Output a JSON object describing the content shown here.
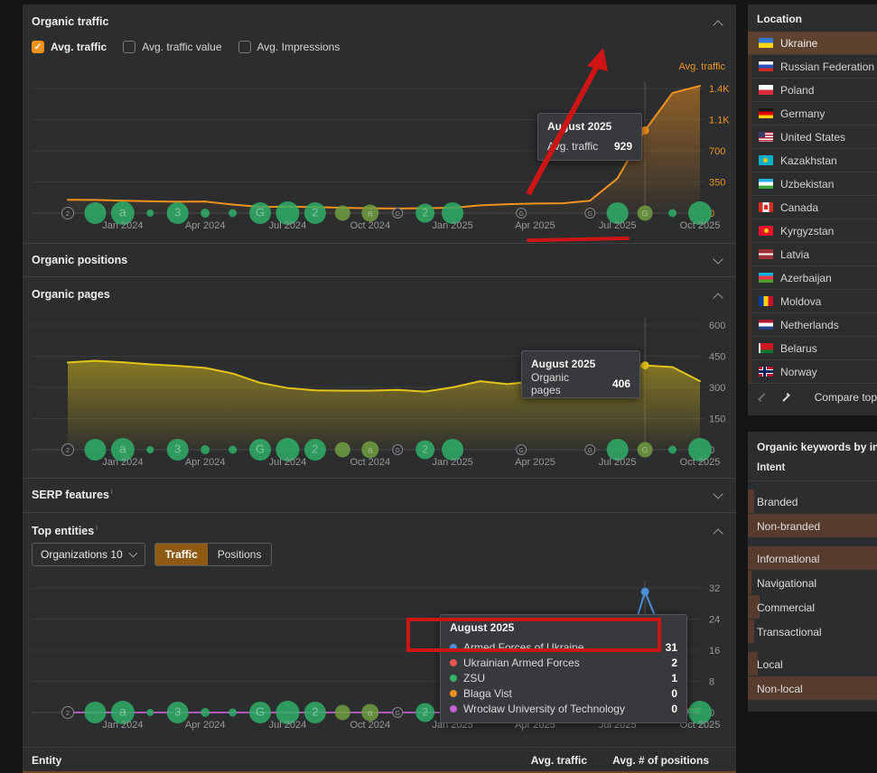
{
  "panels": {
    "organic_traffic": {
      "title": "Organic traffic",
      "checkboxes": [
        {
          "label": "Avg. traffic",
          "checked": true
        },
        {
          "label": "Avg. traffic value",
          "checked": false
        },
        {
          "label": "Avg. Impressions",
          "checked": false
        }
      ],
      "axis_right_title": "Avg. traffic",
      "tooltip": {
        "title": "August 2025",
        "label": "Avg. traffic",
        "value": "929"
      }
    },
    "organic_positions": {
      "title": "Organic positions"
    },
    "organic_pages": {
      "title": "Organic pages",
      "tooltip": {
        "title": "August 2025",
        "label": "Organic pages",
        "value": "406"
      }
    },
    "serp_features": {
      "title": "SERP features",
      "info": "i"
    },
    "top_entities": {
      "title": "Top entities",
      "info": "i",
      "filter_label": "Organizations 10",
      "tabs": [
        "Traffic",
        "Positions"
      ],
      "active_tab": "Traffic",
      "tooltip": {
        "title": "August 2025",
        "rows": [
          {
            "color": "#4a90d9",
            "label": "Armed Forces of Ukraine",
            "value": "31"
          },
          {
            "color": "#e8554e",
            "label": "Ukrainian Armed Forces",
            "value": "2"
          },
          {
            "color": "#36b36b",
            "label": "ZSU",
            "value": "1"
          },
          {
            "color": "#f09023",
            "label": "Blaga Vist",
            "value": "0"
          },
          {
            "color": "#c45fd0",
            "label": "Wrocław University of Technology",
            "value": "0"
          }
        ]
      }
    },
    "entity_table": {
      "columns": [
        "Entity",
        "Avg. traffic",
        "Avg. # of positions"
      ]
    }
  },
  "sidebar": {
    "location": {
      "title": "Location",
      "items": [
        {
          "label": "Ukraine",
          "flag": "ua",
          "selected": true
        },
        {
          "label": "Russian Federation",
          "flag": "ru",
          "selected": false
        },
        {
          "label": "Poland",
          "flag": "pl",
          "selected": false
        },
        {
          "label": "Germany",
          "flag": "de",
          "selected": false
        },
        {
          "label": "United States",
          "flag": "us",
          "selected": false
        },
        {
          "label": "Kazakhstan",
          "flag": "kz",
          "selected": false
        },
        {
          "label": "Uzbekistan",
          "flag": "uz",
          "selected": false
        },
        {
          "label": "Canada",
          "flag": "ca",
          "selected": false
        },
        {
          "label": "Kyrgyzstan",
          "flag": "kg",
          "selected": false
        },
        {
          "label": "Latvia",
          "flag": "lv",
          "selected": false
        },
        {
          "label": "Azerbaijan",
          "flag": "az",
          "selected": false
        },
        {
          "label": "Moldova",
          "flag": "md",
          "selected": false
        },
        {
          "label": "Netherlands",
          "flag": "nl",
          "selected": false
        },
        {
          "label": "Belarus",
          "flag": "by",
          "selected": false
        },
        {
          "label": "Norway",
          "flag": "no",
          "selected": false
        }
      ],
      "compare_label": "Compare top"
    },
    "intent": {
      "title": "Organic keywords by intent",
      "subtitle": "Intent",
      "groups": [
        [
          {
            "label": "Branded",
            "bar_pct": 5
          },
          {
            "label": "Non-branded",
            "bar_pct": 100
          }
        ],
        [
          {
            "label": "Informational",
            "bar_pct": 100
          },
          {
            "label": "Navigational",
            "bar_pct": 3
          },
          {
            "label": "Commercial",
            "bar_pct": 9
          },
          {
            "label": "Transactional",
            "bar_pct": 5
          }
        ],
        [
          {
            "label": "Local",
            "bar_pct": 8
          },
          {
            "label": "Non-local",
            "bar_pct": 100
          }
        ]
      ]
    }
  },
  "shared_markers": [
    {
      "m": 0,
      "s": 13,
      "t": "2",
      "k": "outline"
    },
    {
      "m": 1,
      "s": 24,
      "t": "",
      "k": "solid"
    },
    {
      "m": 2,
      "s": 26,
      "t": "a",
      "k": "solid"
    },
    {
      "m": 3,
      "s": 8,
      "t": "",
      "k": "solid"
    },
    {
      "m": 4,
      "s": 24,
      "t": "3",
      "k": "solid"
    },
    {
      "m": 5,
      "s": 10,
      "t": "",
      "k": "solid"
    },
    {
      "m": 6,
      "s": 9,
      "t": "",
      "k": "solid"
    },
    {
      "m": 7,
      "s": 24,
      "t": "G",
      "k": "solid"
    },
    {
      "m": 8,
      "s": 26,
      "t": "",
      "k": "solid"
    },
    {
      "m": 9,
      "s": 24,
      "t": "2",
      "k": "solid"
    },
    {
      "m": 10,
      "s": 17,
      "t": "",
      "k": "olive"
    },
    {
      "m": 11,
      "s": 19,
      "t": "a",
      "k": "olive"
    },
    {
      "m": 12,
      "s": 11,
      "t": "G",
      "k": "outline"
    },
    {
      "m": 13,
      "s": 21,
      "t": "2",
      "k": "solid"
    },
    {
      "m": 14,
      "s": 24,
      "t": "",
      "k": "solid"
    },
    {
      "m": 16.5,
      "s": 11,
      "t": "G",
      "k": "outline"
    },
    {
      "m": 19,
      "s": 11,
      "t": "G",
      "k": "outline"
    },
    {
      "m": 20,
      "s": 24,
      "t": "",
      "k": "solid"
    },
    {
      "m": 21,
      "s": 17,
      "t": "G",
      "k": "olive"
    },
    {
      "m": 22,
      "s": 9,
      "t": "",
      "k": "solid"
    },
    {
      "m": 23,
      "s": 26,
      "t": "",
      "k": "solid"
    }
  ],
  "chart_data": [
    {
      "type": "line",
      "title": "Organic traffic (Avg. traffic)",
      "x": [
        "Nov 2023",
        "Dec 2023",
        "Jan 2024",
        "Feb 2024",
        "Mar 2024",
        "Apr 2024",
        "May 2024",
        "Jun 2024",
        "Jul 2024",
        "Aug 2024",
        "Sep 2024",
        "Oct 2024",
        "Nov 2024",
        "Dec 2024",
        "Jan 2025",
        "Feb 2025",
        "Mar 2025",
        "Apr 2025",
        "May 2025",
        "Jun 2025",
        "Jul 2025",
        "Aug 2025",
        "Sep 2025",
        "Oct 2025"
      ],
      "xticks": [
        {
          "i": 2,
          "label": "Jan 2024"
        },
        {
          "i": 5,
          "label": "Apr 2024"
        },
        {
          "i": 8,
          "label": "Jul 2024"
        },
        {
          "i": 11,
          "label": "Oct 2024"
        },
        {
          "i": 14,
          "label": "Jan 2025"
        },
        {
          "i": 17,
          "label": "Apr 2025"
        },
        {
          "i": 20,
          "label": "Jul 2025"
        },
        {
          "i": 23,
          "label": "Oct 2025"
        }
      ],
      "ymax": 1400,
      "yticks": [
        {
          "v": 1400,
          "label": "1.4K"
        },
        {
          "v": 1050,
          "label": "1.1K"
        },
        {
          "v": 700,
          "label": "700"
        },
        {
          "v": 350,
          "label": "350"
        },
        {
          "v": 0,
          "label": "0"
        }
      ],
      "tick_color": "#f0941e",
      "crosshair_index": 21,
      "series": [
        {
          "name": "Avg. traffic",
          "color": "#f2921d",
          "fill": true,
          "w": 2,
          "dot_index": 21,
          "values": [
            150,
            148,
            140,
            133,
            128,
            130,
            96,
            70,
            72,
            68,
            60,
            55,
            52,
            56,
            60,
            88,
            100,
            108,
            110,
            140,
            390,
            929,
            1350,
            1430
          ]
        }
      ]
    },
    {
      "type": "line",
      "title": "Organic pages",
      "x": [
        "Nov 2023",
        "Dec 2023",
        "Jan 2024",
        "Feb 2024",
        "Mar 2024",
        "Apr 2024",
        "May 2024",
        "Jun 2024",
        "Jul 2024",
        "Aug 2024",
        "Sep 2024",
        "Oct 2024",
        "Nov 2024",
        "Dec 2024",
        "Jan 2025",
        "Feb 2025",
        "Mar 2025",
        "Apr 2025",
        "May 2025",
        "Jun 2025",
        "Jul 2025",
        "Aug 2025",
        "Sep 2025",
        "Oct 2025"
      ],
      "xticks": [
        {
          "i": 2,
          "label": "Jan 2024"
        },
        {
          "i": 5,
          "label": "Apr 2024"
        },
        {
          "i": 8,
          "label": "Jul 2024"
        },
        {
          "i": 11,
          "label": "Oct 2024"
        },
        {
          "i": 14,
          "label": "Jan 2025"
        },
        {
          "i": 17,
          "label": "Apr 2025"
        },
        {
          "i": 20,
          "label": "Jul 2025"
        },
        {
          "i": 23,
          "label": "Oct 2025"
        }
      ],
      "ymax": 600,
      "yticks": [
        {
          "v": 600,
          "label": "600"
        },
        {
          "v": 450,
          "label": "450"
        },
        {
          "v": 300,
          "label": "300"
        },
        {
          "v": 150,
          "label": "150"
        },
        {
          "v": 0,
          "label": "0"
        }
      ],
      "tick_color": "#96999b",
      "crosshair_index": 21,
      "series": [
        {
          "name": "Organic pages",
          "color": "#e3c418",
          "fill": true,
          "w": 2,
          "dot_index": 21,
          "values": [
            420,
            428,
            421,
            411,
            404,
            394,
            367,
            322,
            297,
            286,
            284,
            284,
            288,
            280,
            300,
            330,
            316,
            330,
            345,
            362,
            382,
            406,
            398,
            330
          ]
        }
      ]
    },
    {
      "type": "line",
      "title": "Top entities (Traffic)",
      "x": [
        "Nov 2023",
        "Dec 2023",
        "Jan 2024",
        "Feb 2024",
        "Mar 2024",
        "Apr 2024",
        "May 2024",
        "Jun 2024",
        "Jul 2024",
        "Aug 2024",
        "Sep 2024",
        "Oct 2024",
        "Nov 2024",
        "Dec 2024",
        "Jan 2025",
        "Feb 2025",
        "Mar 2025",
        "Apr 2025",
        "May 2025",
        "Jun 2025",
        "Jul 2025",
        "Aug 2025",
        "Sep 2025",
        "Oct 2025"
      ],
      "xticks": [
        {
          "i": 2,
          "label": "Jan 2024"
        },
        {
          "i": 5,
          "label": "Apr 2024"
        },
        {
          "i": 8,
          "label": "Jul 2024"
        },
        {
          "i": 11,
          "label": "Oct 2024"
        },
        {
          "i": 14,
          "label": "Jan 2025"
        },
        {
          "i": 17,
          "label": "Apr 2025"
        },
        {
          "i": 20,
          "label": "Jul 2025"
        },
        {
          "i": 23,
          "label": "Oct 2025"
        }
      ],
      "ymax": 32,
      "yticks": [
        {
          "v": 32,
          "label": "32"
        },
        {
          "v": 24,
          "label": "24"
        },
        {
          "v": 16,
          "label": "16"
        },
        {
          "v": 8,
          "label": "8"
        },
        {
          "v": 0,
          "label": "0"
        }
      ],
      "tick_color": "#96999b",
      "crosshair_index": 21,
      "series": [
        {
          "name": "Blaga Vist",
          "color": "#f09023",
          "w": 1.8,
          "values": [
            null,
            null,
            null,
            null,
            null,
            null,
            null,
            null,
            null,
            null,
            null,
            null,
            null,
            null,
            null,
            null,
            null,
            null,
            null,
            0,
            0,
            0,
            0,
            0
          ]
        },
        {
          "name": "Wrocław University of Technology",
          "color": "#c45fd0",
          "w": 1.8,
          "values": [
            0,
            0,
            0,
            0,
            0,
            0,
            0,
            0,
            0,
            0,
            0,
            0,
            0,
            0,
            0,
            0,
            0,
            0,
            0,
            0,
            0,
            0,
            0,
            0
          ]
        },
        {
          "name": "ZSU",
          "color": "#36b36b",
          "w": 1.8,
          "values": [
            null,
            null,
            null,
            null,
            null,
            null,
            null,
            null,
            null,
            null,
            null,
            null,
            null,
            null,
            null,
            null,
            null,
            null,
            null,
            0.3,
            0.4,
            1,
            0.3,
            0.5
          ]
        },
        {
          "name": "Ukrainian Armed Forces",
          "color": "#e8554e",
          "w": 1.8,
          "values": [
            null,
            null,
            null,
            null,
            null,
            null,
            null,
            null,
            null,
            null,
            null,
            null,
            null,
            null,
            null,
            null,
            null,
            null,
            null,
            0.3,
            0.5,
            2,
            0.5,
            1
          ]
        },
        {
          "name": "Armed Forces of Ukraine",
          "color": "#4a90d9",
          "w": 2,
          "dot_index": 21,
          "values": [
            null,
            null,
            null,
            null,
            null,
            null,
            null,
            null,
            null,
            null,
            null,
            null,
            null,
            null,
            0.4,
            0.3,
            0.3,
            0.4,
            0.6,
            1.2,
            8,
            31,
            14,
            null
          ]
        }
      ]
    }
  ]
}
